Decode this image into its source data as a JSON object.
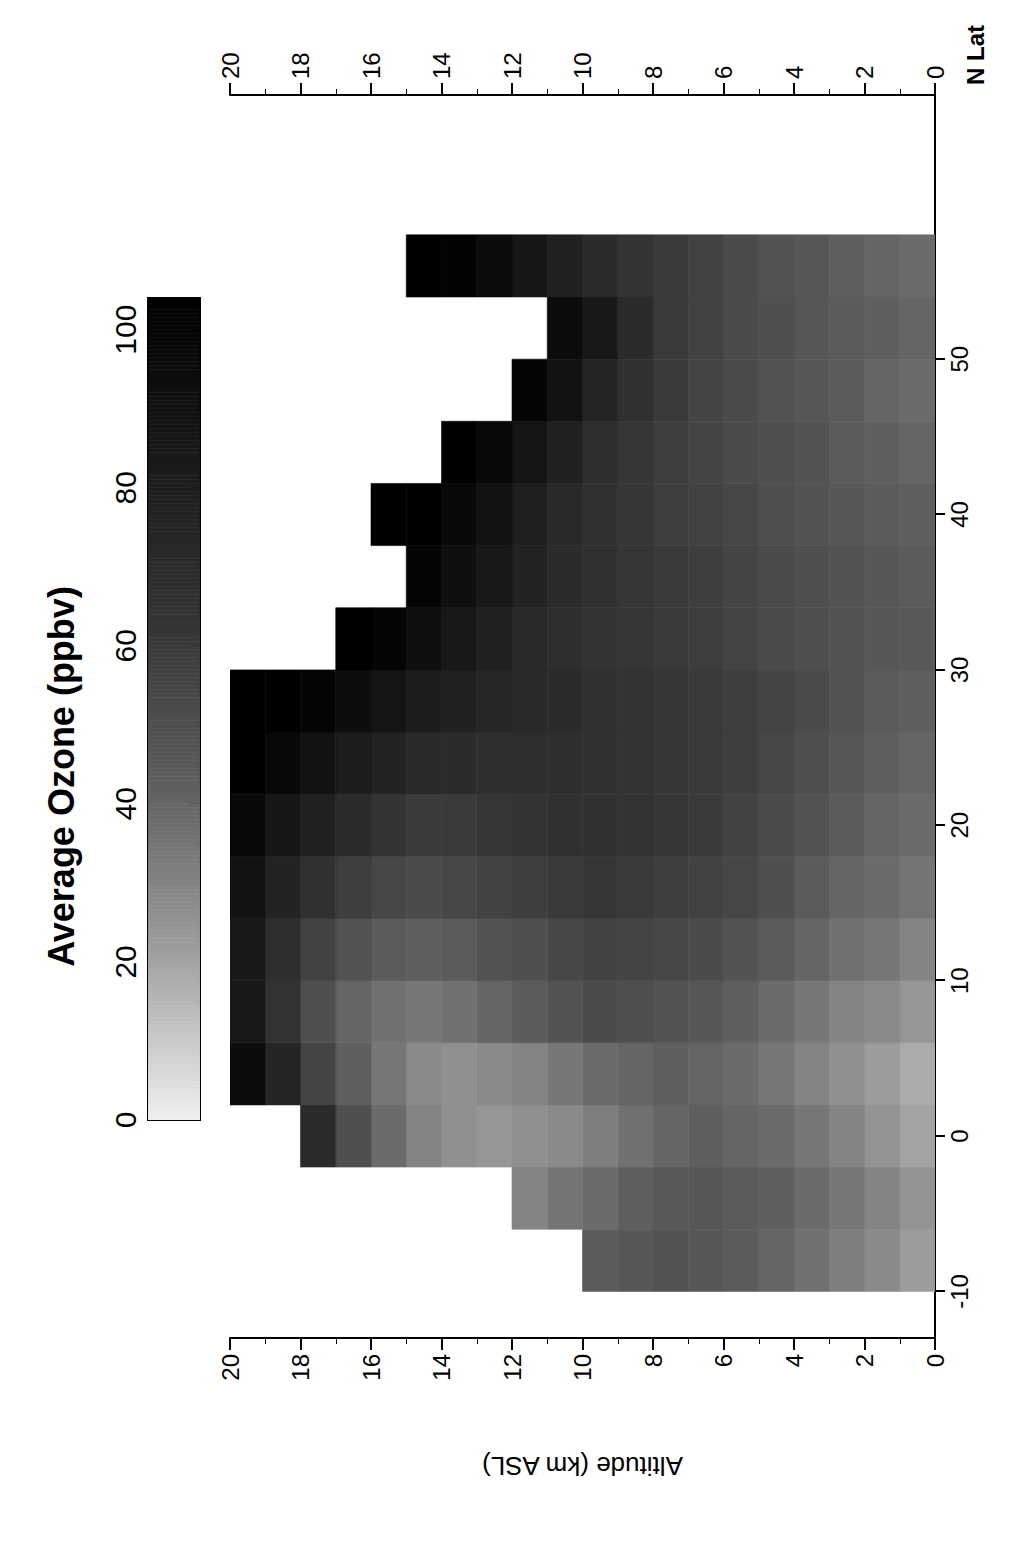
{
  "chart_data": {
    "type": "heatmap",
    "title": "Average Ozone (ppbv)",
    "x_label": "N Lat",
    "y_label": "Altitude (km ASL)",
    "xlim": [
      -13,
      67
    ],
    "xticks": [
      -10,
      0,
      10,
      20,
      30,
      40,
      50
    ],
    "ylim": [
      0,
      20
    ],
    "yticks": [
      0,
      2,
      4,
      6,
      8,
      10,
      12,
      14,
      16,
      18,
      20
    ],
    "y2lim": [
      0,
      20
    ],
    "y2ticks": [
      0,
      2,
      4,
      6,
      8,
      10,
      12,
      14,
      16,
      18,
      20
    ],
    "grid": false,
    "lat_edges": [
      -10,
      -6,
      -2,
      2,
      6,
      10,
      14,
      18,
      22,
      26,
      30,
      34,
      38,
      42,
      46,
      50,
      54,
      58
    ],
    "alt_edges": [
      0,
      1,
      2,
      3,
      4,
      5,
      6,
      7,
      8,
      9,
      10,
      11,
      12,
      13,
      14,
      15,
      16,
      17,
      18,
      19,
      20
    ],
    "ozone": [
      [
        22,
        25,
        20,
        18,
        24,
        30,
        35,
        38,
        40,
        42,
        45,
        44,
        42,
        40,
        38,
        40,
        38
      ],
      [
        28,
        30,
        25,
        22,
        28,
        34,
        38,
        40,
        42,
        44,
        46,
        46,
        44,
        42,
        40,
        42,
        40
      ],
      [
        32,
        34,
        30,
        26,
        30,
        36,
        40,
        44,
        46,
        48,
        48,
        48,
        46,
        44,
        44,
        44,
        42
      ],
      [
        36,
        38,
        34,
        30,
        34,
        40,
        44,
        48,
        50,
        52,
        50,
        50,
        48,
        48,
        46,
        46,
        46
      ],
      [
        40,
        42,
        38,
        34,
        38,
        44,
        50,
        52,
        54,
        55,
        52,
        52,
        50,
        50,
        48,
        50,
        48
      ],
      [
        44,
        44,
        40,
        38,
        42,
        48,
        54,
        56,
        58,
        58,
        55,
        55,
        54,
        52,
        52,
        52,
        52
      ],
      [
        46,
        46,
        42,
        40,
        46,
        52,
        56,
        60,
        60,
        60,
        58,
        58,
        56,
        55,
        55,
        56,
        56
      ],
      [
        48,
        45,
        40,
        42,
        48,
        54,
        58,
        62,
        62,
        62,
        60,
        60,
        58,
        58,
        60,
        60,
        60
      ],
      [
        46,
        42,
        36,
        40,
        50,
        55,
        60,
        64,
        64,
        64,
        62,
        62,
        62,
        62,
        66,
        70,
        64
      ],
      [
        44,
        38,
        32,
        38,
        52,
        56,
        62,
        66,
        66,
        66,
        64,
        66,
        66,
        68,
        75,
        85,
        70
      ],
      [
        null,
        35,
        28,
        34,
        48,
        54,
        60,
        66,
        68,
        70,
        68,
        70,
        72,
        78,
        90,
        95,
        78
      ],
      [
        null,
        30,
        26,
        30,
        44,
        50,
        58,
        64,
        68,
        72,
        72,
        76,
        80,
        88,
        100,
        null,
        86
      ],
      [
        null,
        null,
        24,
        28,
        40,
        48,
        56,
        62,
        68,
        74,
        78,
        84,
        90,
        98,
        null,
        null,
        95
      ],
      [
        null,
        null,
        26,
        26,
        36,
        44,
        54,
        60,
        70,
        78,
        85,
        92,
        98,
        104,
        null,
        null,
        102
      ],
      [
        null,
        null,
        30,
        28,
        34,
        42,
        52,
        60,
        72,
        82,
        92,
        100,
        104,
        null,
        null,
        null,
        104
      ],
      [
        null,
        null,
        38,
        34,
        36,
        44,
        54,
        64,
        76,
        88,
        100,
        null,
        104,
        null,
        null,
        null,
        null
      ],
      [
        null,
        null,
        50,
        42,
        40,
        48,
        58,
        70,
        82,
        94,
        104,
        null,
        null,
        null,
        null,
        null,
        null
      ],
      [
        null,
        null,
        70,
        55,
        50,
        56,
        66,
        78,
        90,
        100,
        null,
        null,
        null,
        null,
        null,
        null,
        null
      ],
      [
        null,
        null,
        null,
        75,
        65,
        68,
        76,
        86,
        98,
        104,
        null,
        null,
        null,
        null,
        null,
        null,
        null
      ],
      [
        null,
        null,
        null,
        95,
        85,
        84,
        90,
        98,
        104,
        104,
        null,
        null,
        null,
        null,
        null,
        null,
        null
      ]
    ],
    "colorbar": {
      "range": [
        0,
        104
      ],
      "ticks": [
        0,
        20,
        40,
        60,
        80,
        100
      ]
    }
  }
}
